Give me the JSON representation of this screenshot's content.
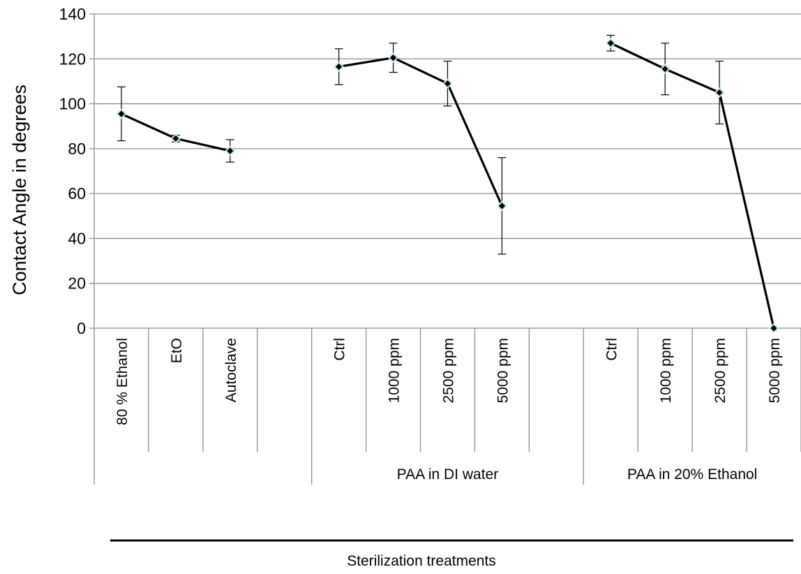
{
  "chart_data": {
    "type": "line",
    "ylabel": "Contact Angle in degrees",
    "xlabel": "Sterilization treatments",
    "ylim": [
      0,
      140
    ],
    "yticks": [
      0,
      20,
      40,
      60,
      80,
      100,
      120,
      140
    ],
    "grid": true,
    "legend": "none",
    "line_color": "#000000",
    "marker_fill": "#000000",
    "marker_stroke": "#bfe3ea",
    "categories": [
      "80 % Ethanol",
      "EtO",
      "Autoclave",
      "",
      "Ctrl",
      "1000 ppm",
      "2500 ppm",
      "5000 ppm",
      "",
      "Ctrl",
      "1000 ppm",
      "2500 ppm",
      "5000 ppm"
    ],
    "groups": [
      {
        "label": "",
        "start": 0,
        "end": 3
      },
      {
        "label": "PAA in DI water",
        "start": 4,
        "end": 8
      },
      {
        "label": "PAA in 20% Ethanol",
        "start": 9,
        "end": 12
      }
    ],
    "series": [
      {
        "values": [
          95.5,
          84.5,
          79,
          null,
          116.5,
          120.5,
          109,
          54.5,
          null,
          127,
          115.5,
          105,
          0
        ],
        "error": [
          12,
          1.5,
          5,
          null,
          8,
          6.5,
          10,
          21.5,
          null,
          3.5,
          11.5,
          14,
          0
        ]
      }
    ]
  }
}
